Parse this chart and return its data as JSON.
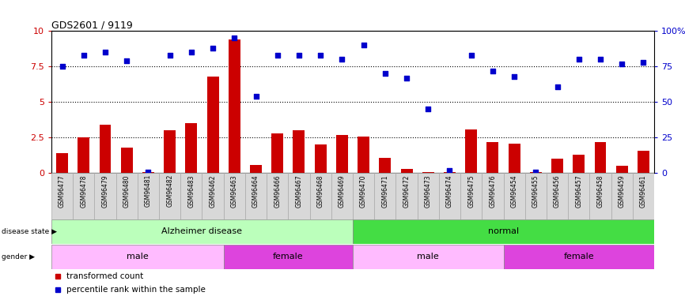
{
  "title": "GDS2601 / 9119",
  "samples": [
    "GSM96477",
    "GSM96478",
    "GSM96479",
    "GSM96480",
    "GSM96481",
    "GSM96482",
    "GSM96483",
    "GSM96462",
    "GSM96463",
    "GSM96464",
    "GSM96466",
    "GSM96467",
    "GSM96468",
    "GSM96469",
    "GSM96470",
    "GSM96471",
    "GSM96472",
    "GSM96473",
    "GSM96474",
    "GSM96475",
    "GSM96476",
    "GSM96454",
    "GSM96455",
    "GSM96456",
    "GSM96457",
    "GSM96458",
    "GSM96459",
    "GSM96461"
  ],
  "bar_values": [
    1.4,
    2.5,
    3.4,
    1.8,
    0.05,
    3.0,
    3.5,
    6.8,
    9.4,
    0.6,
    2.8,
    3.0,
    2.0,
    2.7,
    2.6,
    1.1,
    0.3,
    0.05,
    0.05,
    3.1,
    2.2,
    2.1,
    0.05,
    1.0,
    1.3,
    2.2,
    0.5,
    1.6
  ],
  "dot_values": [
    75,
    83,
    85,
    79,
    0.5,
    83,
    85,
    88,
    95,
    54,
    83,
    83,
    83,
    80,
    90,
    70,
    67,
    45,
    2,
    83,
    72,
    68,
    1,
    61,
    80,
    80,
    77,
    78
  ],
  "bar_color": "#cc0000",
  "dot_color": "#0000cc",
  "ylim_left": [
    0,
    10
  ],
  "ylim_right": [
    0,
    100
  ],
  "yticks_left": [
    0,
    2.5,
    5.0,
    7.5,
    10
  ],
  "yticks_right": [
    0,
    25,
    50,
    75,
    100
  ],
  "hlines": [
    2.5,
    5.0,
    7.5
  ],
  "disease_state_groups": [
    {
      "label": "Alzheimer disease",
      "start": 0,
      "end": 14,
      "color": "#bbffbb"
    },
    {
      "label": "normal",
      "start": 14,
      "end": 28,
      "color": "#44dd44"
    }
  ],
  "gender_groups": [
    {
      "label": "male",
      "start": 0,
      "end": 8,
      "color": "#ffbbff"
    },
    {
      "label": "female",
      "start": 8,
      "end": 14,
      "color": "#dd44dd"
    },
    {
      "label": "male",
      "start": 14,
      "end": 21,
      "color": "#ffbbff"
    },
    {
      "label": "female",
      "start": 21,
      "end": 28,
      "color": "#dd44dd"
    }
  ],
  "legend_items": [
    {
      "label": "transformed count",
      "color": "#cc0000"
    },
    {
      "label": "percentile rank within the sample",
      "color": "#0000cc"
    }
  ],
  "xtick_box_color": "#d8d8d8",
  "xtick_box_edge": "#aaaaaa"
}
